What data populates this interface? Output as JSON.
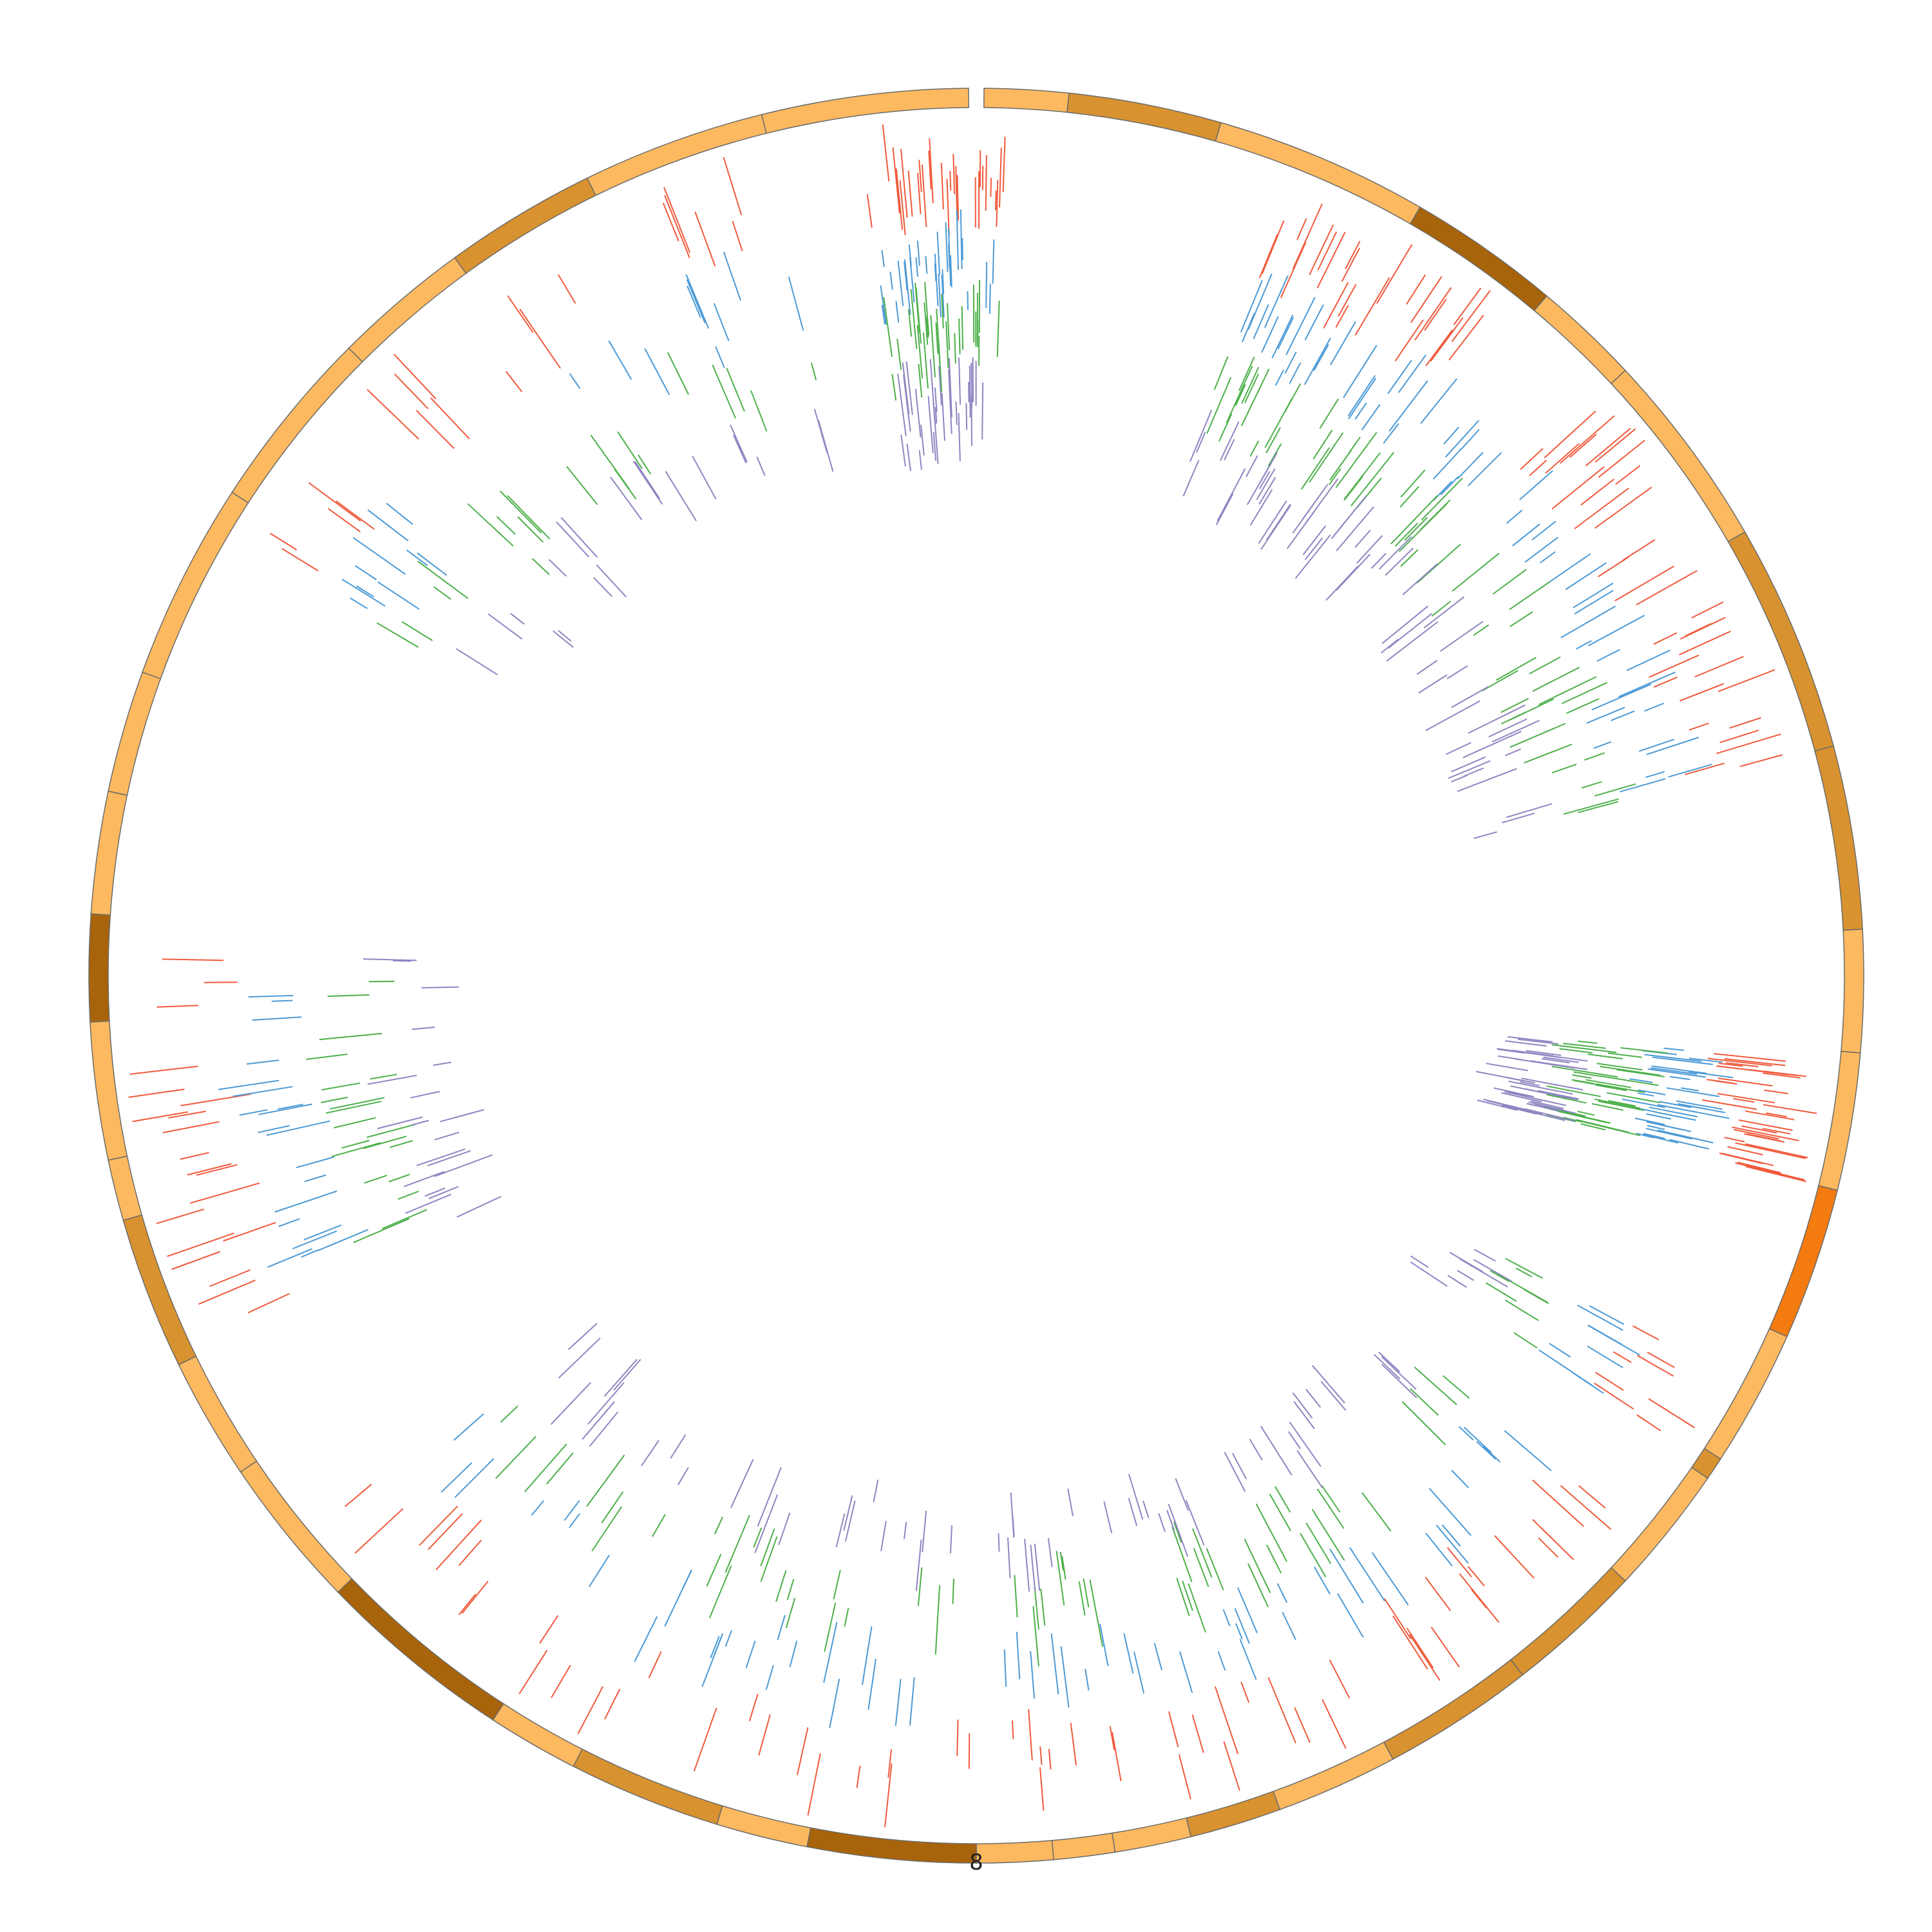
{
  "diagram": {
    "chromosome_label": "8",
    "ideogram_band_colors": {
      "light": "#FDB95F",
      "medium": "#D8922F",
      "dark": "#A8640A",
      "accent": "#F47B0F"
    },
    "track_colors": {
      "red": "#F05A3C",
      "blue": "#4C9AD6",
      "green": "#4DB04A",
      "purple": "#8E86C2"
    }
  }
}
